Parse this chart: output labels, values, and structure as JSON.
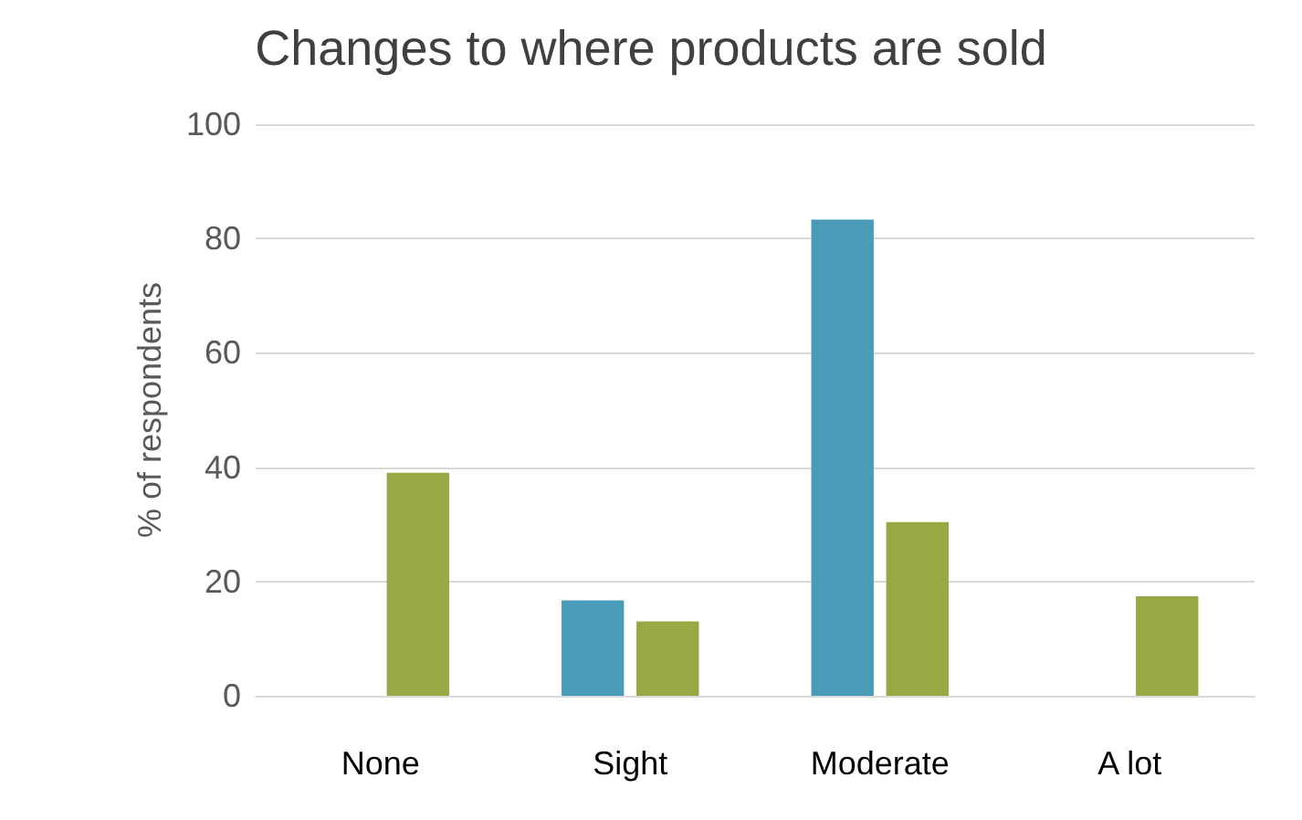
{
  "chart_data": {
    "type": "bar",
    "title": "Changes to where products are sold",
    "ylabel": "% of respondents",
    "categories": [
      "None",
      "Sight",
      "Moderate",
      "A lot"
    ],
    "series": [
      {
        "color": "#4a9bb8",
        "values": [
          0,
          16.7,
          83.3,
          0
        ]
      },
      {
        "color": "#97a845",
        "values": [
          39,
          13,
          30.4,
          17.4
        ]
      }
    ],
    "ylim": [
      0,
      100
    ],
    "yticks": [
      0,
      20,
      40,
      60,
      80,
      100
    ],
    "grid": "y"
  }
}
